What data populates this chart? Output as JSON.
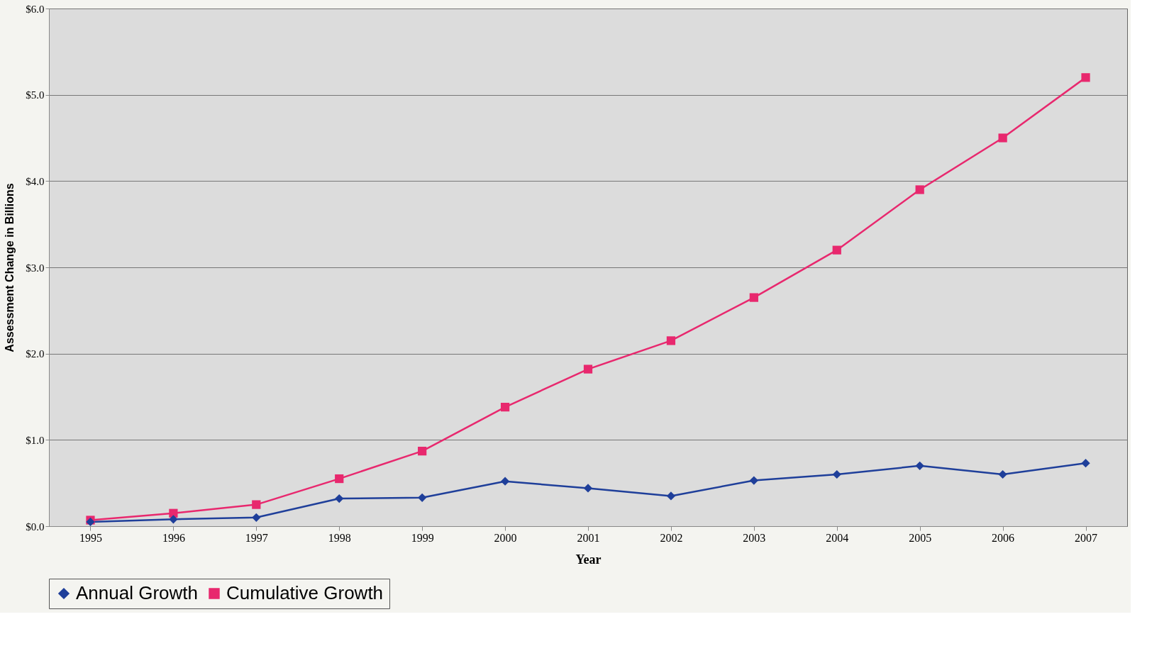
{
  "chart_data": {
    "type": "line",
    "xlabel": "Year",
    "ylabel": "Assessment Change in Billions",
    "categories": [
      "1995",
      "1996",
      "1997",
      "1998",
      "1999",
      "2000",
      "2001",
      "2002",
      "2003",
      "2004",
      "2005",
      "2006",
      "2007"
    ],
    "series": [
      {
        "name": "Annual Growth",
        "color": "#1f3f9a",
        "marker": "diamond",
        "values": [
          0.05,
          0.08,
          0.1,
          0.32,
          0.33,
          0.52,
          0.44,
          0.35,
          0.53,
          0.6,
          0.7,
          0.6,
          0.73
        ]
      },
      {
        "name": "Cumulative Growth",
        "color": "#e8286e",
        "marker": "square",
        "values": [
          0.07,
          0.15,
          0.25,
          0.55,
          0.87,
          1.38,
          1.82,
          2.15,
          2.65,
          3.2,
          3.9,
          4.5,
          5.2
        ]
      }
    ],
    "ylim": [
      0,
      6
    ],
    "yticks": [
      {
        "value": 0,
        "label": "$0.0"
      },
      {
        "value": 1,
        "label": "$1.0"
      },
      {
        "value": 2,
        "label": "$2.0"
      },
      {
        "value": 3,
        "label": "$3.0"
      },
      {
        "value": 4,
        "label": "$4.0"
      },
      {
        "value": 5,
        "label": "$5.0"
      },
      {
        "value": 6,
        "label": "$6.0"
      }
    ],
    "grid": "y",
    "legend": "bottom",
    "line_style": "solid"
  }
}
